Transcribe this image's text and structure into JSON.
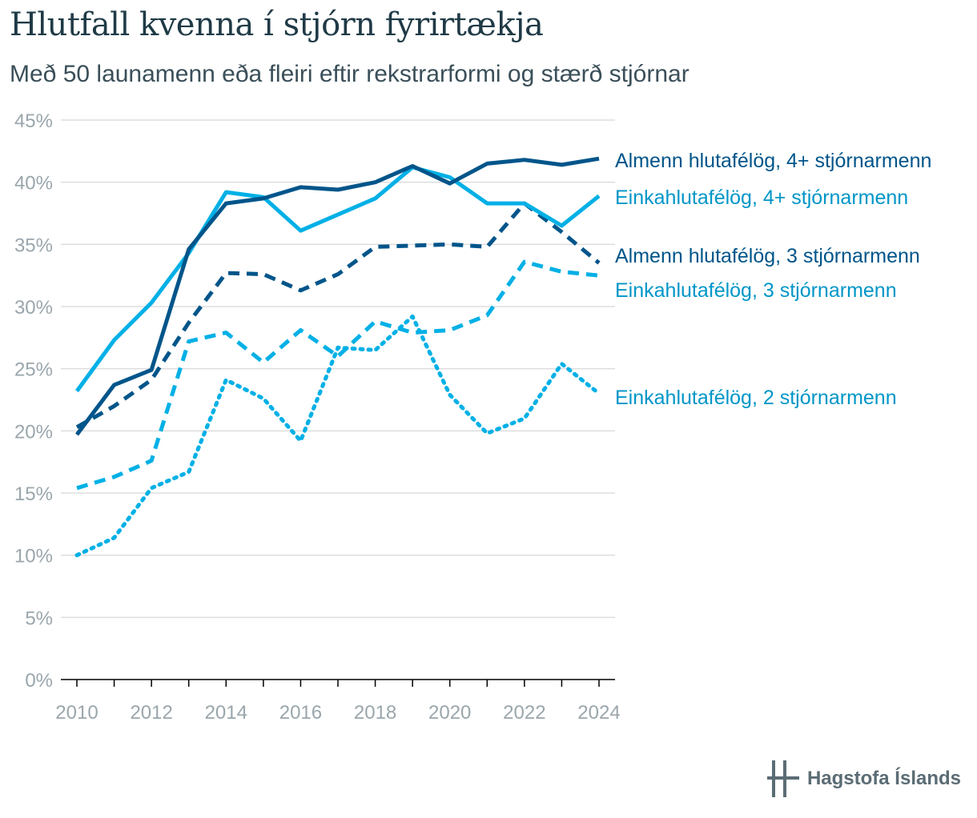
{
  "chart_data": {
    "type": "line",
    "title": "Hlutfall kvenna í stjórn fyrirtækja",
    "subtitle": "Með 50 launamenn eða fleiri eftir rekstrarformi og stærð stjórnar",
    "x": [
      2010,
      2011,
      2012,
      2013,
      2014,
      2015,
      2016,
      2017,
      2018,
      2019,
      2020,
      2021,
      2022,
      2023,
      2024
    ],
    "x_tick_labels": [
      "2010",
      "2012",
      "2014",
      "2016",
      "2018",
      "2020",
      "2022",
      "2024"
    ],
    "y_tick_labels": [
      "0%",
      "5%",
      "10%",
      "15%",
      "20%",
      "25%",
      "30%",
      "35%",
      "40%",
      "45%"
    ],
    "ylim": [
      0,
      45
    ],
    "grid": true,
    "series": [
      {
        "name": "Almenn hlutafélög, 4+ stjórnarmenn",
        "color": "#00558a",
        "dash": "solid",
        "values": [
          19.7,
          23.7,
          24.9,
          34.6,
          38.3,
          38.7,
          39.6,
          39.4,
          40.0,
          41.3,
          39.9,
          41.5,
          41.8,
          41.4,
          41.9
        ]
      },
      {
        "name": "Einkahlutafélög, 4+ stjórnarmenn",
        "color": "#00b0e6",
        "dash": "solid",
        "values": [
          23.2,
          27.3,
          30.3,
          34.3,
          39.2,
          38.8,
          36.1,
          37.4,
          38.7,
          41.2,
          40.4,
          38.3,
          38.3,
          36.5,
          38.9
        ]
      },
      {
        "name": "Almenn hlutafélög, 3 stjórnarmenn",
        "color": "#00558a",
        "dash": "dashed",
        "values": [
          20.3,
          22.0,
          24.1,
          28.7,
          32.7,
          32.6,
          31.3,
          32.6,
          34.8,
          34.9,
          35.0,
          34.8,
          38.3,
          36.0,
          33.5
        ]
      },
      {
        "name": "Einkahlutafélög, 3 stjórnarmenn",
        "color": "#00b0e6",
        "dash": "dashed",
        "values": [
          15.4,
          16.3,
          17.6,
          27.2,
          27.9,
          25.5,
          28.1,
          26.0,
          28.8,
          27.9,
          28.1,
          29.3,
          33.6,
          32.8,
          32.5
        ]
      },
      {
        "name": "Einkahlutafélög, 2 stjórnarmenn",
        "color": "#00b0e6",
        "dash": "dotted",
        "values": [
          10.0,
          11.4,
          15.4,
          16.7,
          24.1,
          22.6,
          19.2,
          26.7,
          26.5,
          29.2,
          22.9,
          19.8,
          21.0,
          25.4,
          23.0
        ]
      }
    ]
  },
  "labels": [
    {
      "text": "Almenn hlutafélög, 4+ stjórnarmenn",
      "color": "#00558a"
    },
    {
      "text": "Einkahlutafélög, 4+ stjórnarmenn",
      "color": "#0096c8"
    },
    {
      "text": "Almenn hlutafélög, 3 stjórnarmenn",
      "color": "#00558a"
    },
    {
      "text": "Einkahlutafélög, 3 stjórnarmenn",
      "color": "#0096c8"
    },
    {
      "text": "Einkahlutafélög, 2 stjórnarmenn",
      "color": "#0096c8"
    }
  ],
  "logo": {
    "text": "Hagstofa Íslands"
  }
}
